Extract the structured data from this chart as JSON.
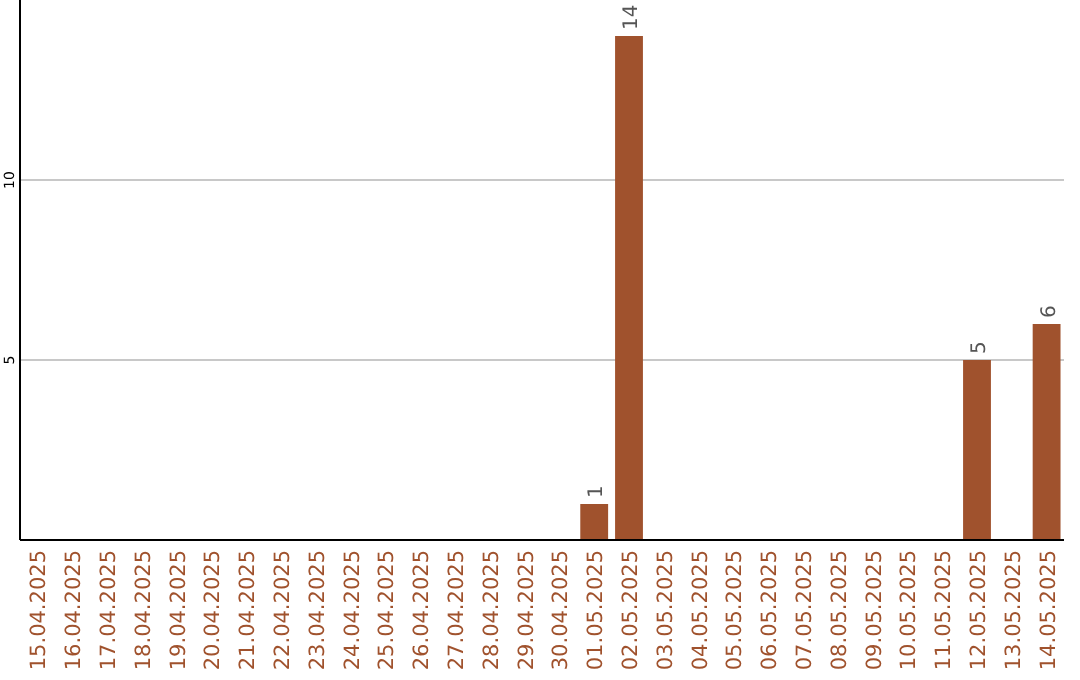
{
  "chart_data": {
    "type": "bar",
    "categories": [
      "15.04.2025",
      "16.04.2025",
      "17.04.2025",
      "18.04.2025",
      "19.04.2025",
      "20.04.2025",
      "21.04.2025",
      "22.04.2025",
      "23.04.2025",
      "24.04.2025",
      "25.04.2025",
      "26.04.2025",
      "27.04.2025",
      "28.04.2025",
      "29.04.2025",
      "30.04.2025",
      "01.05.2025",
      "02.05.2025",
      "03.05.2025",
      "04.05.2025",
      "05.05.2025",
      "06.05.2025",
      "07.05.2025",
      "08.05.2025",
      "09.05.2025",
      "10.05.2025",
      "11.05.2025",
      "12.05.2025",
      "13.05.2025",
      "14.05.2025"
    ],
    "values": [
      0,
      0,
      0,
      0,
      0,
      0,
      0,
      0,
      0,
      0,
      0,
      0,
      0,
      0,
      0,
      0,
      1,
      14,
      0,
      0,
      0,
      0,
      0,
      0,
      0,
      0,
      0,
      5,
      0,
      6
    ],
    "value_labels": [
      null,
      null,
      null,
      null,
      null,
      null,
      null,
      null,
      null,
      null,
      null,
      null,
      null,
      null,
      null,
      null,
      "1",
      "14",
      null,
      null,
      null,
      null,
      null,
      null,
      null,
      null,
      null,
      "5",
      null,
      "6"
    ],
    "color": "#a0522d",
    "ylim": [
      0,
      15
    ],
    "yticks": [
      5,
      10
    ],
    "grid": "y"
  }
}
